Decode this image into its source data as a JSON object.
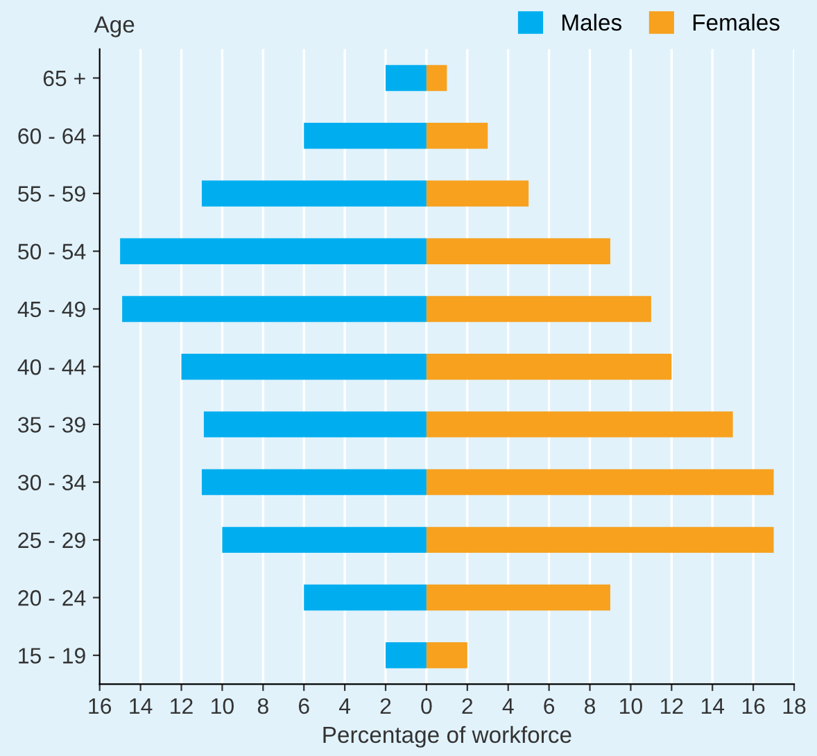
{
  "chart_data": {
    "type": "bar",
    "orientation": "horizontal",
    "xlabel": "Percentage of workforce",
    "ylabel": "Age",
    "categories": [
      "65 +",
      "60 - 64",
      "55 - 59",
      "50 - 54",
      "45 - 49",
      "40 - 44",
      "35 - 39",
      "30 - 34",
      "25 - 29",
      "20 - 24",
      "15 - 19"
    ],
    "series": [
      {
        "name": "Males",
        "color": "#00aeef",
        "values": [
          -2,
          -6,
          -11,
          -15,
          -14.9,
          -12,
          -10.9,
          -11,
          -10,
          -6,
          -2
        ]
      },
      {
        "name": "Females",
        "color": "#f7a11f",
        "values": [
          1,
          3,
          5,
          9,
          11,
          12,
          15,
          17,
          17,
          9,
          2
        ]
      }
    ],
    "xlim": [
      -16,
      18
    ],
    "xticks": [
      {
        "value": -16,
        "label": "16"
      },
      {
        "value": -14,
        "label": "14"
      },
      {
        "value": -12,
        "label": "12"
      },
      {
        "value": -10,
        "label": "10"
      },
      {
        "value": -8,
        "label": "8"
      },
      {
        "value": -6,
        "label": "6"
      },
      {
        "value": -4,
        "label": "4"
      },
      {
        "value": -2,
        "label": "2"
      },
      0,
      2,
      4,
      6,
      8,
      10,
      12,
      14,
      16,
      18
    ],
    "stacked": true,
    "grid": "x",
    "legend": "top right"
  }
}
